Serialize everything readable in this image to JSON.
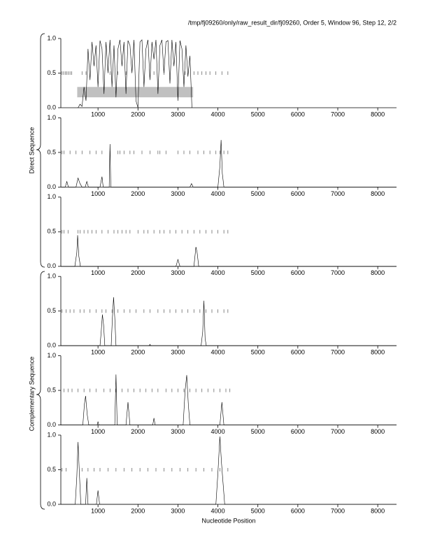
{
  "title": "/tmp/fj09260/only/raw_result_dir/fj09260, Order 5, Window 96, Step 12, 2/2",
  "xlabel": "Nucleotide Position",
  "group_labels": [
    "Direct Sequence",
    "Complementary Sequence"
  ],
  "chart_data": [
    {
      "type": "line",
      "color": "#000000",
      "x": [
        500,
        550,
        600,
        650,
        700,
        750,
        800,
        850,
        900,
        950,
        1000,
        1050,
        1100,
        1150,
        1200,
        1250,
        1300,
        1350,
        1400,
        1450,
        1500,
        1550,
        1600,
        1650,
        1700,
        1750,
        1800,
        1850,
        1900,
        1950,
        2000,
        2050,
        2100,
        2150,
        2200,
        2250,
        2300,
        2350,
        2400,
        2450,
        2500,
        2550,
        2600,
        2650,
        2700,
        2750,
        2800,
        2850,
        2900,
        2950,
        3000,
        3050,
        3100,
        3150,
        3200,
        3250,
        3300,
        3350
      ],
      "values": [
        0.0,
        0.05,
        0.02,
        0.3,
        0.1,
        0.85,
        0.4,
        0.95,
        0.6,
        0.9,
        0.3,
        0.97,
        0.85,
        0.2,
        0.95,
        0.5,
        0.98,
        0.3,
        0.9,
        0.15,
        0.85,
        0.98,
        0.6,
        0.95,
        0.2,
        0.97,
        0.9,
        0.5,
        0.98,
        0.1,
        0.0,
        0.95,
        0.98,
        0.3,
        0.85,
        0.98,
        0.4,
        0.95,
        0.7,
        0.98,
        0.2,
        0.9,
        0.98,
        0.5,
        0.95,
        0.97,
        0.35,
        0.98,
        0.6,
        0.95,
        0.1,
        0.97,
        0.85,
        0.3,
        0.9,
        0.45,
        0.75,
        0.0
      ],
      "regions": [
        [
          480,
          3380
        ]
      ],
      "markers": [
        100,
        140,
        180,
        220,
        260,
        300,
        340,
        600,
        700,
        1300,
        1500,
        1700,
        2400,
        2650,
        3180,
        3400,
        3500,
        3600,
        3700,
        3800,
        3950,
        4100,
        4250
      ],
      "xlim": [
        70,
        8470
      ],
      "ylim": [
        0,
        1
      ],
      "xticks": [
        1000,
        2000,
        3000,
        4000,
        5000,
        6000,
        7000,
        8000
      ],
      "yticks": [
        {
          "value": 0,
          "label": "0.0"
        },
        {
          "value": 0.5,
          "label": "0.5"
        },
        {
          "value": 1,
          "label": "1.0"
        }
      ]
    },
    {
      "type": "line",
      "color": "#000000",
      "x": [
        70,
        180,
        220,
        260,
        450,
        500,
        550,
        600,
        680,
        720,
        760,
        1050,
        1100,
        1130,
        1250,
        1280,
        1300,
        1320,
        3300,
        3340,
        3380,
        4000,
        4050,
        4080,
        4110,
        4150,
        8470
      ],
      "values": [
        0,
        0,
        0.08,
        0,
        0,
        0.13,
        0.05,
        0,
        0,
        0.08,
        0,
        0,
        0.15,
        0,
        0,
        0,
        0.62,
        0,
        0,
        0.05,
        0,
        0,
        0.3,
        0.68,
        0.2,
        0,
        0
      ],
      "markers": [
        100,
        150,
        300,
        450,
        600,
        800,
        950,
        1100,
        1300,
        1500,
        1550,
        1650,
        1800,
        1900,
        2100,
        2300,
        2500,
        2550,
        2700,
        3000,
        3150,
        3300,
        3500,
        3650,
        3800,
        3950,
        4050,
        4150,
        4250
      ],
      "xlim": [
        70,
        8470
      ],
      "ylim": [
        0,
        1
      ],
      "xticks": [
        1000,
        2000,
        3000,
        4000,
        5000,
        6000,
        7000,
        8000
      ],
      "yticks": [
        {
          "value": 0,
          "label": "0.0"
        },
        {
          "value": 0.5,
          "label": "0.5"
        },
        {
          "value": 1,
          "label": "1.0"
        }
      ]
    },
    {
      "type": "line",
      "color": "#000000",
      "x": [
        70,
        420,
        470,
        490,
        520,
        560,
        2950,
        3000,
        3050,
        3400,
        3450,
        3480,
        3520,
        8470
      ],
      "values": [
        0,
        0,
        0.2,
        0.45,
        0.15,
        0,
        0,
        0.1,
        0,
        0,
        0.28,
        0.2,
        0,
        0
      ],
      "markers": [
        100,
        150,
        250,
        500,
        550,
        650,
        750,
        850,
        950,
        1100,
        1250,
        1400,
        1500,
        1600,
        1700,
        1800,
        2000,
        2150,
        2250,
        2400,
        2550,
        2650,
        2800,
        2950,
        3100,
        3250,
        3400,
        3550,
        3700,
        3850,
        4000,
        4150,
        4250
      ],
      "xlim": [
        70,
        8470
      ],
      "ylim": [
        0,
        1
      ],
      "xticks": [
        1000,
        2000,
        3000,
        4000,
        5000,
        6000,
        7000,
        8000
      ],
      "yticks": [
        {
          "value": 0,
          "label": "0.0"
        },
        {
          "value": 0.5,
          "label": "0.5"
        },
        {
          "value": 1,
          "label": "1.0"
        }
      ]
    },
    {
      "type": "line",
      "color": "#000000",
      "x": [
        70,
        1050,
        1080,
        1110,
        1140,
        1170,
        1330,
        1360,
        1390,
        1420,
        1450,
        2280,
        2300,
        2320,
        3580,
        3620,
        3650,
        3680,
        3710,
        8470
      ],
      "values": [
        0,
        0,
        0.2,
        0.45,
        0.3,
        0,
        0,
        0.4,
        0.7,
        0.4,
        0,
        0,
        0.02,
        0,
        0,
        0.2,
        0.65,
        0.1,
        0,
        0
      ],
      "markers": [
        100,
        200,
        300,
        400,
        550,
        650,
        800,
        950,
        1100,
        1200,
        1350,
        1500,
        1650,
        1800,
        1950,
        2150,
        2300,
        2500,
        2650,
        2800,
        2950,
        3100,
        3250,
        3400,
        3550,
        3700,
        3850,
        4000,
        4150,
        4250
      ],
      "xlim": [
        70,
        8470
      ],
      "ylim": [
        0,
        1
      ],
      "xticks": [
        1000,
        2000,
        3000,
        4000,
        5000,
        6000,
        7000,
        8000
      ],
      "yticks": [
        {
          "value": 0,
          "label": "0.0"
        },
        {
          "value": 0.5,
          "label": "0.5"
        },
        {
          "value": 1,
          "label": "1.0"
        }
      ]
    },
    {
      "type": "line",
      "color": "#000000",
      "x": [
        70,
        620,
        660,
        690,
        730,
        770,
        980,
        1000,
        1020,
        1420,
        1450,
        1480,
        1700,
        1750,
        1800,
        2370,
        2400,
        2430,
        3130,
        3180,
        3220,
        3260,
        3300,
        4050,
        4100,
        4150,
        8470
      ],
      "values": [
        0,
        0,
        0.3,
        0.42,
        0.15,
        0,
        0,
        0.05,
        0,
        0,
        0.73,
        0,
        0,
        0.33,
        0,
        0,
        0.1,
        0,
        0,
        0.5,
        0.72,
        0.3,
        0,
        0,
        0.33,
        0,
        0
      ],
      "markers": [
        150,
        250,
        350,
        500,
        650,
        800,
        950,
        1150,
        1300,
        1450,
        1600,
        1750,
        1900,
        2050,
        2200,
        2350,
        2500,
        2700,
        2850,
        3000,
        3150,
        3300,
        3450,
        3600,
        3750,
        3900,
        4050,
        4200,
        4300
      ],
      "xlim": [
        70,
        8470
      ],
      "ylim": [
        0,
        1
      ],
      "xticks": [
        1000,
        2000,
        3000,
        4000,
        5000,
        6000,
        7000,
        8000
      ],
      "yticks": [
        {
          "value": 0,
          "label": "0.0"
        },
        {
          "value": 0.5,
          "label": "0.5"
        },
        {
          "value": 1,
          "label": "1.0"
        }
      ]
    },
    {
      "type": "line",
      "color": "#000000",
      "x": [
        70,
        430,
        470,
        500,
        530,
        570,
        690,
        720,
        750,
        960,
        1000,
        1040,
        3950,
        4000,
        4050,
        4090,
        4130,
        4170,
        8470
      ],
      "values": [
        0,
        0,
        0.4,
        0.9,
        0.5,
        0,
        0,
        0.38,
        0,
        0,
        0.2,
        0,
        0,
        0.45,
        0.98,
        0.6,
        0.3,
        0,
        0
      ],
      "markers": [
        100,
        200,
        600,
        750,
        900,
        1050,
        1250,
        1450,
        1650,
        1850,
        2050,
        2250,
        2450,
        2650,
        2850,
        3050,
        3250,
        3450,
        3650,
        3850,
        4050,
        4250
      ],
      "xlim": [
        70,
        8470
      ],
      "ylim": [
        0,
        1
      ],
      "xticks": [
        1000,
        2000,
        3000,
        4000,
        5000,
        6000,
        7000,
        8000
      ],
      "yticks": [
        {
          "value": 0,
          "label": "0.0"
        },
        {
          "value": 0.5,
          "label": "0.5"
        },
        {
          "value": 1,
          "label": "1.0"
        }
      ]
    }
  ]
}
